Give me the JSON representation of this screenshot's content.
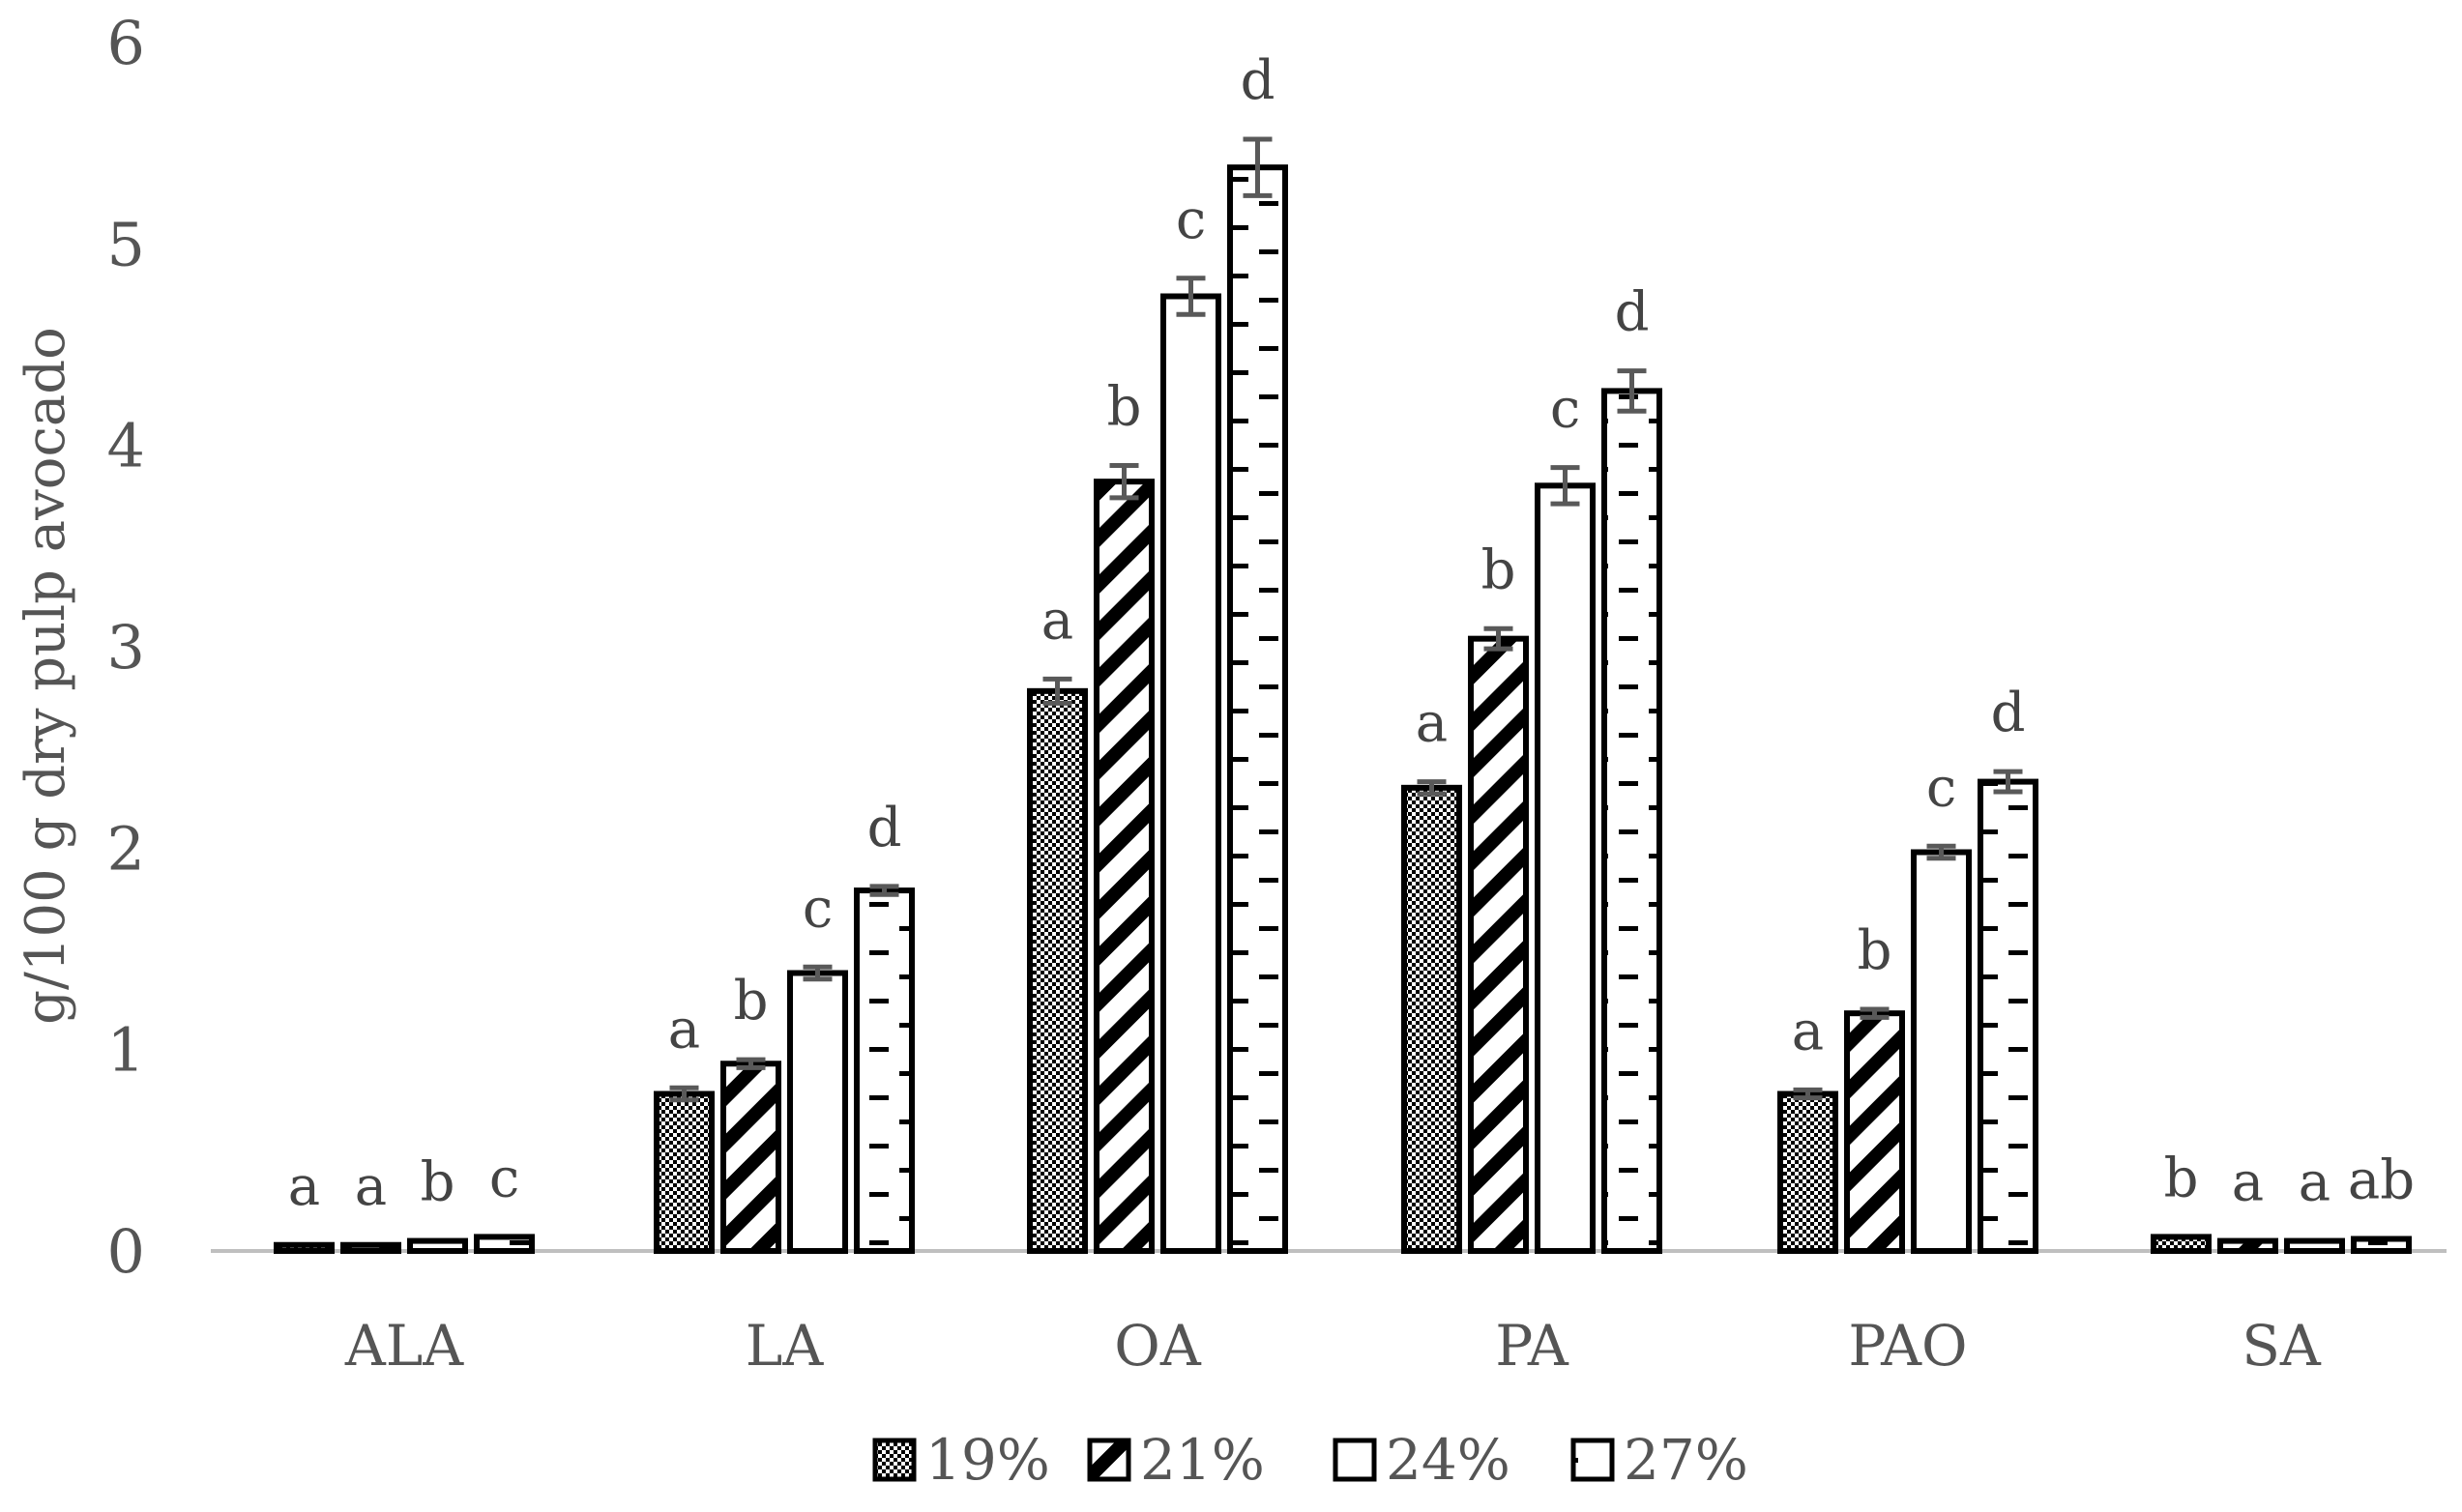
{
  "chart_data": {
    "type": "bar",
    "ylabel": "g/100 g dry pulp avocado",
    "xlabel": "",
    "ylim": [
      0,
      6
    ],
    "yticks": [
      0,
      1,
      2,
      3,
      4,
      5,
      6
    ],
    "grid": false,
    "legend_position": "bottom",
    "categories": [
      "ALA",
      "LA",
      "OA",
      "PA",
      "PAO",
      "SA"
    ],
    "series": [
      {
        "name": "19%",
        "pattern": "checker",
        "values": [
          0.03,
          0.78,
          2.78,
          2.3,
          0.78,
          0.07
        ],
        "errors": [
          0.0,
          0.03,
          0.06,
          0.03,
          0.02,
          0.0
        ],
        "letters": [
          "a",
          "a",
          "a",
          "a",
          "a",
          "b"
        ]
      },
      {
        "name": "21%",
        "pattern": "diagonal",
        "values": [
          0.03,
          0.93,
          3.82,
          3.04,
          1.18,
          0.05
        ],
        "errors": [
          0.0,
          0.02,
          0.08,
          0.05,
          0.02,
          0.0
        ],
        "letters": [
          "a",
          "b",
          "b",
          "b",
          "b",
          "a"
        ]
      },
      {
        "name": "24%",
        "pattern": "white",
        "values": [
          0.05,
          1.38,
          4.74,
          3.8,
          1.98,
          0.05
        ],
        "errors": [
          0.0,
          0.03,
          0.09,
          0.09,
          0.03,
          0.0
        ],
        "letters": [
          "b",
          "c",
          "c",
          "c",
          "c",
          "a"
        ]
      },
      {
        "name": "27%",
        "pattern": "dashed",
        "values": [
          0.07,
          1.79,
          5.38,
          4.27,
          2.33,
          0.06
        ],
        "errors": [
          0.0,
          0.02,
          0.14,
          0.1,
          0.05,
          0.0
        ],
        "letters": [
          "c",
          "d",
          "d",
          "d",
          "d",
          "ab"
        ]
      }
    ]
  },
  "colors": {
    "axis": "#bfbfbf",
    "bar_stroke": "#000000",
    "error_bar": "#595959",
    "text": "#555555",
    "background": "#ffffff"
  }
}
